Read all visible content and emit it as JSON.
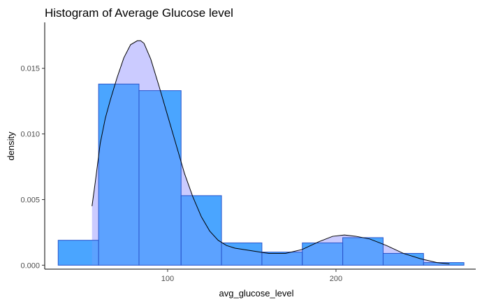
{
  "chart_data": {
    "type": "bar",
    "title": "Histogram of Average Glucose level",
    "xlabel": "avg_glucose_level",
    "ylabel": "density",
    "xlim": [
      27,
      283
    ],
    "ylim": [
      -0.0003,
      0.0185
    ],
    "x_ticks": [
      {
        "value": 100,
        "label": "100"
      },
      {
        "value": 200,
        "label": "200"
      }
    ],
    "y_ticks": [
      {
        "value": 0.0,
        "label": "0.000"
      },
      {
        "value": 0.005,
        "label": "0.005"
      },
      {
        "value": 0.01,
        "label": "0.010"
      },
      {
        "value": 0.015,
        "label": "0.015"
      }
    ],
    "grid": false,
    "bins": [
      {
        "x0": 35,
        "x1": 59,
        "density": 0.0019
      },
      {
        "x0": 59,
        "x1": 83,
        "density": 0.0138
      },
      {
        "x0": 83,
        "x1": 108,
        "density": 0.0133
      },
      {
        "x0": 108,
        "x1": 132,
        "density": 0.0053
      },
      {
        "x0": 132,
        "x1": 156,
        "density": 0.0017
      },
      {
        "x0": 156,
        "x1": 180,
        "density": 0.001
      },
      {
        "x0": 180,
        "x1": 204,
        "density": 0.0017
      },
      {
        "x0": 204,
        "x1": 228,
        "density": 0.0021
      },
      {
        "x0": 228,
        "x1": 252,
        "density": 0.0009
      },
      {
        "x0": 252,
        "x1": 276,
        "density": 0.0002
      }
    ],
    "density_curve": {
      "x": [
        55.1,
        57,
        60,
        63,
        66,
        70,
        74,
        78,
        82,
        84,
        86,
        90,
        95,
        100,
        105,
        110,
        115,
        120,
        125,
        130,
        135,
        140,
        150,
        160,
        170,
        180,
        190,
        198,
        205,
        212,
        220,
        230,
        240,
        250,
        260,
        267.4
      ],
      "y": [
        0.0045,
        0.0063,
        0.0093,
        0.0112,
        0.0126,
        0.0143,
        0.0158,
        0.0168,
        0.0171,
        0.0171,
        0.0169,
        0.0157,
        0.0136,
        0.0114,
        0.0092,
        0.007,
        0.0052,
        0.0037,
        0.0026,
        0.0019,
        0.0015,
        0.0013,
        0.0011,
        0.0009,
        0.0009,
        0.0012,
        0.0018,
        0.0022,
        0.0023,
        0.0022,
        0.002,
        0.0015,
        0.0009,
        0.0005,
        0.0002,
        0.0001
      ]
    },
    "colors": {
      "bar_fill": "#3399ff",
      "bar_stroke": "#2a55cc",
      "density_fill": "#a9a9ff",
      "density_stroke": "#000000",
      "axis": "#000000",
      "tick_text": "#4d4d4d"
    }
  }
}
